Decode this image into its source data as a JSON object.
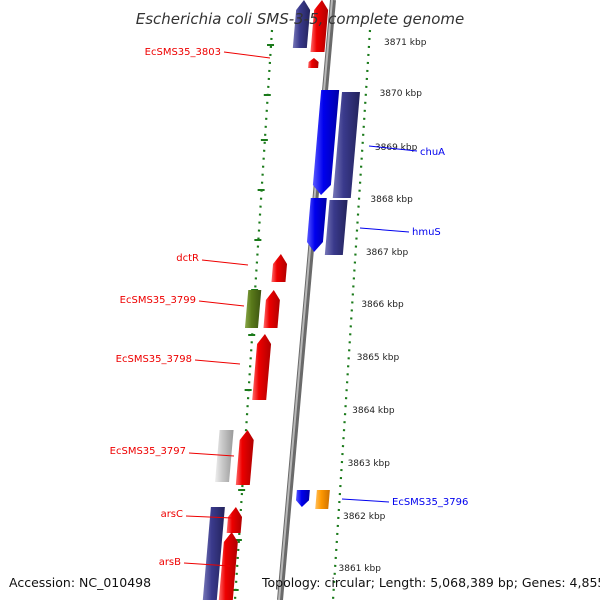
{
  "title": "Escherichia coli SMS-3-5, complete genome",
  "accession": "Accession: NC_010498",
  "topology": "Topology: circular; Length: 5,068,389 bp; Genes: 4,855",
  "colors": {
    "red": "#ee0000",
    "blue": "#0000ee",
    "purple": "#3a3a8c",
    "green": "#5a7a1a",
    "gray": "#bdbdbd",
    "orange": "#ff9900",
    "dotted_guide": "#1a7a1a",
    "backbone": "#8a8a8a"
  },
  "scale_ticks": [
    {
      "label": "3871 kbp"
    },
    {
      "label": "3870 kbp"
    },
    {
      "label": "3869 kbp"
    },
    {
      "label": "3868 kbp"
    },
    {
      "label": "3867 kbp"
    },
    {
      "label": "3866 kbp"
    },
    {
      "label": "3865 kbp"
    },
    {
      "label": "3864 kbp"
    },
    {
      "label": "3863 kbp"
    },
    {
      "label": "3862 kbp"
    },
    {
      "label": "3861 kbp"
    }
  ],
  "genes_left": [
    {
      "name": "EcSMS35_3803",
      "color": "red"
    },
    {
      "name": "dctR",
      "color": "red"
    },
    {
      "name": "EcSMS35_3799",
      "color": "red"
    },
    {
      "name": "EcSMS35_3798",
      "color": "red"
    },
    {
      "name": "EcSMS35_3797",
      "color": "red"
    },
    {
      "name": "arsC",
      "color": "red"
    },
    {
      "name": "arsB",
      "color": "red"
    }
  ],
  "genes_right": [
    {
      "name": "chuA",
      "color": "blue"
    },
    {
      "name": "hmuS",
      "color": "blue"
    },
    {
      "name": "EcSMS35_3796",
      "color": "blue"
    }
  ]
}
